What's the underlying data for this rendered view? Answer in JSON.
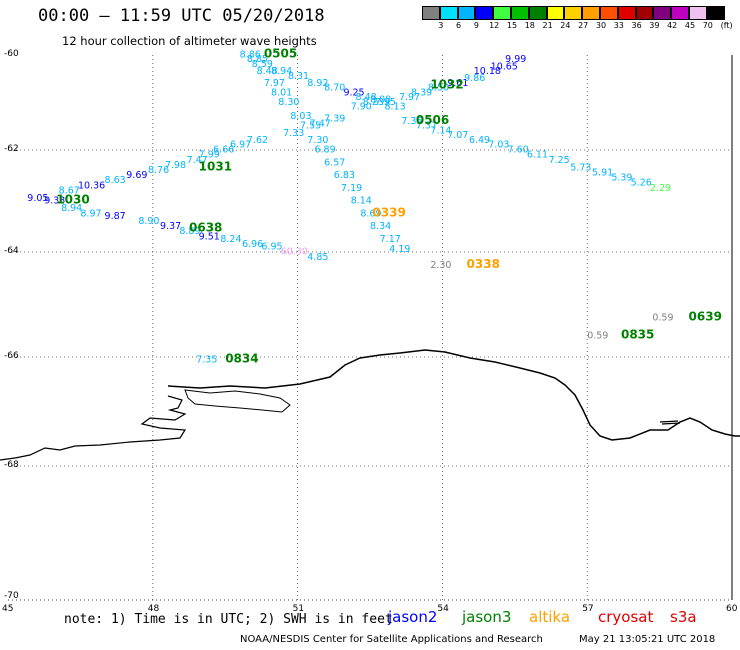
{
  "header": {
    "title": "00:00 – 11:59 UTC 05/20/2018",
    "subtitle": "12 hour collection of altimeter wave heights"
  },
  "color_scale": {
    "labels": [
      "3",
      "6",
      "9",
      "12",
      "15",
      "18",
      "21",
      "24",
      "27",
      "30",
      "33",
      "36",
      "39",
      "42",
      "45",
      "70"
    ],
    "unit": "(ft)",
    "colors": [
      "#808080",
      "#00e0ff",
      "#00b4ff",
      "#0000ff",
      "#40ff40",
      "#00c000",
      "#008000",
      "#ffff00",
      "#ffd000",
      "#ffa000",
      "#ff5000",
      "#e00000",
      "#a00000",
      "#800080",
      "#c000c0",
      "#f0c0f0",
      "#000000"
    ]
  },
  "axes": {
    "x_ticks": [
      "45",
      "48",
      "51",
      "54",
      "57",
      "60"
    ],
    "y_ticks": [
      "-60",
      "-62",
      "-64",
      "-66",
      "-68",
      "-70"
    ]
  },
  "footer": {
    "note": "note: 1) Time is in UTC; 2) SWH is in feet",
    "satellites": [
      {
        "name": "jason2",
        "color": "#0000ff"
      },
      {
        "name": "jason3",
        "color": "#008000"
      },
      {
        "name": "altika",
        "color": "#ffa000"
      },
      {
        "name": "cryosat",
        "color": "#e00000"
      },
      {
        "name": "s3a",
        "color": "#e00000"
      }
    ],
    "credit": "NOAA/NESDIS Center for Satellite Applications and Research",
    "timestamp": "May 21 13:05:21 UTC 2018"
  },
  "time_labels": [
    {
      "text": "0505",
      "lon": 50.3,
      "lat": -60.05,
      "color": "#008000"
    },
    {
      "text": "1032",
      "lon": 53.75,
      "lat": -60.7,
      "color": "#008000"
    },
    {
      "text": "0506",
      "lon": 53.45,
      "lat": -61.45,
      "color": "#008000"
    },
    {
      "text": "1031",
      "lon": 48.95,
      "lat": -62.4,
      "color": "#008000"
    },
    {
      "text": "1030",
      "lon": 46.0,
      "lat": -63.05,
      "color": "#008000"
    },
    {
      "text": "0638",
      "lon": 48.75,
      "lat": -63.6,
      "color": "#008000"
    },
    {
      "text": "0339",
      "lon": 52.55,
      "lat": -63.3,
      "color": "#ffa000"
    },
    {
      "text": "0338",
      "lon": 54.5,
      "lat": -64.3,
      "color": "#ffa000"
    },
    {
      "text": "0639",
      "lon": 59.1,
      "lat": -65.3,
      "color": "#008000"
    },
    {
      "text": "0835",
      "lon": 57.7,
      "lat": -65.65,
      "color": "#008000"
    },
    {
      "text": "0834",
      "lon": 49.5,
      "lat": -66.1,
      "color": "#008000"
    }
  ],
  "swh_values": [
    {
      "text": "8.86",
      "lon": 49.8,
      "lat": -60.05,
      "color": "#00b4ff"
    },
    {
      "text": "8.85",
      "lon": 49.95,
      "lat": -60.15,
      "color": "#00b4ff"
    },
    {
      "text": "8.59",
      "lon": 50.05,
      "lat": -60.25,
      "color": "#00b4ff"
    },
    {
      "text": "8.48",
      "lon": 50.15,
      "lat": -60.4,
      "color": "#00b4ff"
    },
    {
      "text": "8.94",
      "lon": 50.45,
      "lat": -60.4,
      "color": "#00b4ff"
    },
    {
      "text": "8.31",
      "lon": 50.8,
      "lat": -60.5,
      "color": "#00b4ff"
    },
    {
      "text": "7.97",
      "lon": 50.3,
      "lat": -60.65,
      "color": "#00b4ff"
    },
    {
      "text": "8.92",
      "lon": 51.2,
      "lat": -60.65,
      "color": "#00b4ff"
    },
    {
      "text": "8.70",
      "lon": 51.55,
      "lat": -60.75,
      "color": "#00b4ff"
    },
    {
      "text": "8.01",
      "lon": 50.45,
      "lat": -60.85,
      "color": "#00b4ff"
    },
    {
      "text": "9.25",
      "lon": 51.95,
      "lat": -60.85,
      "color": "#0000ff"
    },
    {
      "text": "8.30",
      "lon": 50.6,
      "lat": -61.05,
      "color": "#00b4ff"
    },
    {
      "text": "8.48",
      "lon": 52.2,
      "lat": -60.95,
      "color": "#00b4ff"
    },
    {
      "text": "8.23",
      "lon": 52.35,
      "lat": -61.05,
      "color": "#00b4ff"
    },
    {
      "text": "8.08",
      "lon": 52.5,
      "lat": -61.0,
      "color": "#00b4ff"
    },
    {
      "text": "7.95",
      "lon": 52.6,
      "lat": -61.05,
      "color": "#00b4ff"
    },
    {
      "text": "7.90",
      "lon": 52.1,
      "lat": -61.15,
      "color": "#00b4ff"
    },
    {
      "text": "8.13",
      "lon": 52.8,
      "lat": -61.15,
      "color": "#00b4ff"
    },
    {
      "text": "7.97",
      "lon": 53.1,
      "lat": -60.95,
      "color": "#00b4ff"
    },
    {
      "text": "8.39",
      "lon": 53.35,
      "lat": -60.85,
      "color": "#00b4ff"
    },
    {
      "text": "8.50",
      "lon": 53.7,
      "lat": -60.75,
      "color": "#00b4ff"
    },
    {
      "text": "9.61",
      "lon": 54.1,
      "lat": -60.65,
      "color": "#0000ff"
    },
    {
      "text": "9.86",
      "lon": 54.45,
      "lat": -60.55,
      "color": "#00b4ff"
    },
    {
      "text": "10.18",
      "lon": 54.65,
      "lat": -60.4,
      "color": "#0000ff"
    },
    {
      "text": "10.65",
      "lon": 55.0,
      "lat": -60.3,
      "color": "#0000ff"
    },
    {
      "text": "9.99",
      "lon": 55.3,
      "lat": -60.15,
      "color": "#0000ff"
    },
    {
      "text": "8.03",
      "lon": 50.85,
      "lat": -61.35,
      "color": "#00b4ff"
    },
    {
      "text": "7.39",
      "lon": 51.55,
      "lat": -61.4,
      "color": "#00b4ff"
    },
    {
      "text": "7.47",
      "lon": 51.25,
      "lat": -61.5,
      "color": "#00b4ff"
    },
    {
      "text": "7.55",
      "lon": 51.05,
      "lat": -61.55,
      "color": "#00b4ff"
    },
    {
      "text": "7.33",
      "lon": 50.7,
      "lat": -61.7,
      "color": "#00b4ff"
    },
    {
      "text": "7.30",
      "lon": 51.2,
      "lat": -61.85,
      "color": "#00b4ff"
    },
    {
      "text": "7.35",
      "lon": 53.15,
      "lat": -61.45,
      "color": "#00b4ff"
    },
    {
      "text": "7.37",
      "lon": 53.45,
      "lat": -61.55,
      "color": "#00b4ff"
    },
    {
      "text": "7.14",
      "lon": 53.75,
      "lat": -61.65,
      "color": "#00b4ff"
    },
    {
      "text": "7.07",
      "lon": 54.1,
      "lat": -61.75,
      "color": "#00b4ff"
    },
    {
      "text": "6.49",
      "lon": 54.55,
      "lat": -61.85,
      "color": "#00b4ff"
    },
    {
      "text": "7.03",
      "lon": 54.95,
      "lat": -61.95,
      "color": "#00b4ff"
    },
    {
      "text": "7.60",
      "lon": 55.35,
      "lat": -62.05,
      "color": "#00b4ff"
    },
    {
      "text": "6.11",
      "lon": 55.75,
      "lat": -62.15,
      "color": "#00b4ff"
    },
    {
      "text": "7.25",
      "lon": 56.2,
      "lat": -62.25,
      "color": "#00b4ff"
    },
    {
      "text": "5.73",
      "lon": 56.65,
      "lat": -62.4,
      "color": "#00b4ff"
    },
    {
      "text": "5.91",
      "lon": 57.1,
      "lat": -62.5,
      "color": "#00b4ff"
    },
    {
      "text": "5.39",
      "lon": 57.5,
      "lat": -62.6,
      "color": "#00b4ff"
    },
    {
      "text": "5.26",
      "lon": 57.9,
      "lat": -62.7,
      "color": "#00b4ff"
    },
    {
      "text": "2.29",
      "lon": 58.3,
      "lat": -62.8,
      "color": "#40ff40"
    },
    {
      "text": "7.62",
      "lon": 49.95,
      "lat": -61.85,
      "color": "#00b4ff"
    },
    {
      "text": "6.97",
      "lon": 49.6,
      "lat": -61.95,
      "color": "#00b4ff"
    },
    {
      "text": "6.66",
      "lon": 49.25,
      "lat": -62.05,
      "color": "#00b4ff"
    },
    {
      "text": "7.99",
      "lon": 48.95,
      "lat": -62.15,
      "color": "#00b4ff"
    },
    {
      "text": "7.47",
      "lon": 48.7,
      "lat": -62.25,
      "color": "#00b4ff"
    },
    {
      "text": "7.98",
      "lon": 48.25,
      "lat": -62.35,
      "color": "#00b4ff"
    },
    {
      "text": "8.76",
      "lon": 47.9,
      "lat": -62.45,
      "color": "#00b4ff"
    },
    {
      "text": "9.69",
      "lon": 47.45,
      "lat": -62.55,
      "color": "#0000ff"
    },
    {
      "text": "8.63",
      "lon": 47.0,
      "lat": -62.65,
      "color": "#00b4ff"
    },
    {
      "text": "10.36",
      "lon": 46.45,
      "lat": -62.75,
      "color": "#0000ff"
    },
    {
      "text": "8.67",
      "lon": 46.05,
      "lat": -62.85,
      "color": "#00b4ff"
    },
    {
      "text": "9.05",
      "lon": 45.4,
      "lat": -63.0,
      "color": "#0000ff"
    },
    {
      "text": "9.33",
      "lon": 45.75,
      "lat": -63.05,
      "color": "#0000ff"
    },
    {
      "text": "8.94",
      "lon": 46.1,
      "lat": -63.2,
      "color": "#00b4ff"
    },
    {
      "text": "8.97",
      "lon": 46.5,
      "lat": -63.3,
      "color": "#00b4ff"
    },
    {
      "text": "9.87",
      "lon": 47.0,
      "lat": -63.35,
      "color": "#0000ff"
    },
    {
      "text": "8.90",
      "lon": 47.7,
      "lat": -63.45,
      "color": "#00b4ff"
    },
    {
      "text": "9.37",
      "lon": 48.15,
      "lat": -63.55,
      "color": "#0000ff"
    },
    {
      "text": "8.89",
      "lon": 48.55,
      "lat": -63.65,
      "color": "#00b4ff"
    },
    {
      "text": "9.51",
      "lon": 48.95,
      "lat": -63.75,
      "color": "#0000ff"
    },
    {
      "text": "8.24",
      "lon": 49.4,
      "lat": -63.8,
      "color": "#00b4ff"
    },
    {
      "text": "6.96",
      "lon": 49.85,
      "lat": -63.9,
      "color": "#00b4ff"
    },
    {
      "text": "6.95",
      "lon": 50.25,
      "lat": -63.95,
      "color": "#00b4ff"
    },
    {
      "text": "60.30",
      "lon": 50.65,
      "lat": -64.05,
      "color": "#f0a0f0"
    },
    {
      "text": "4.85",
      "lon": 51.2,
      "lat": -64.15,
      "color": "#00b4ff"
    },
    {
      "text": "6.89",
      "lon": 51.35,
      "lat": -62.05,
      "color": "#00b4ff"
    },
    {
      "text": "6.57",
      "lon": 51.55,
      "lat": -62.3,
      "color": "#00b4ff"
    },
    {
      "text": "6.83",
      "lon": 51.75,
      "lat": -62.55,
      "color": "#00b4ff"
    },
    {
      "text": "7.19",
      "lon": 51.9,
      "lat": -62.8,
      "color": "#00b4ff"
    },
    {
      "text": "8.14",
      "lon": 52.1,
      "lat": -63.05,
      "color": "#00b4ff"
    },
    {
      "text": "8.69",
      "lon": 52.3,
      "lat": -63.3,
      "color": "#00b4ff"
    },
    {
      "text": "8.34",
      "lon": 52.5,
      "lat": -63.55,
      "color": "#00b4ff"
    },
    {
      "text": "7.17",
      "lon": 52.7,
      "lat": -63.8,
      "color": "#00b4ff"
    },
    {
      "text": "4.19",
      "lon": 52.9,
      "lat": -64.0,
      "color": "#00b4ff"
    },
    {
      "text": "2.30",
      "lon": 53.75,
      "lat": -64.3,
      "color": "#808080"
    },
    {
      "text": "0.59",
      "lon": 58.35,
      "lat": -65.3,
      "color": "#808080"
    },
    {
      "text": "0.59",
      "lon": 57.0,
      "lat": -65.65,
      "color": "#808080"
    },
    {
      "text": "7.35",
      "lon": 48.9,
      "lat": -66.1,
      "color": "#00b4ff"
    }
  ]
}
